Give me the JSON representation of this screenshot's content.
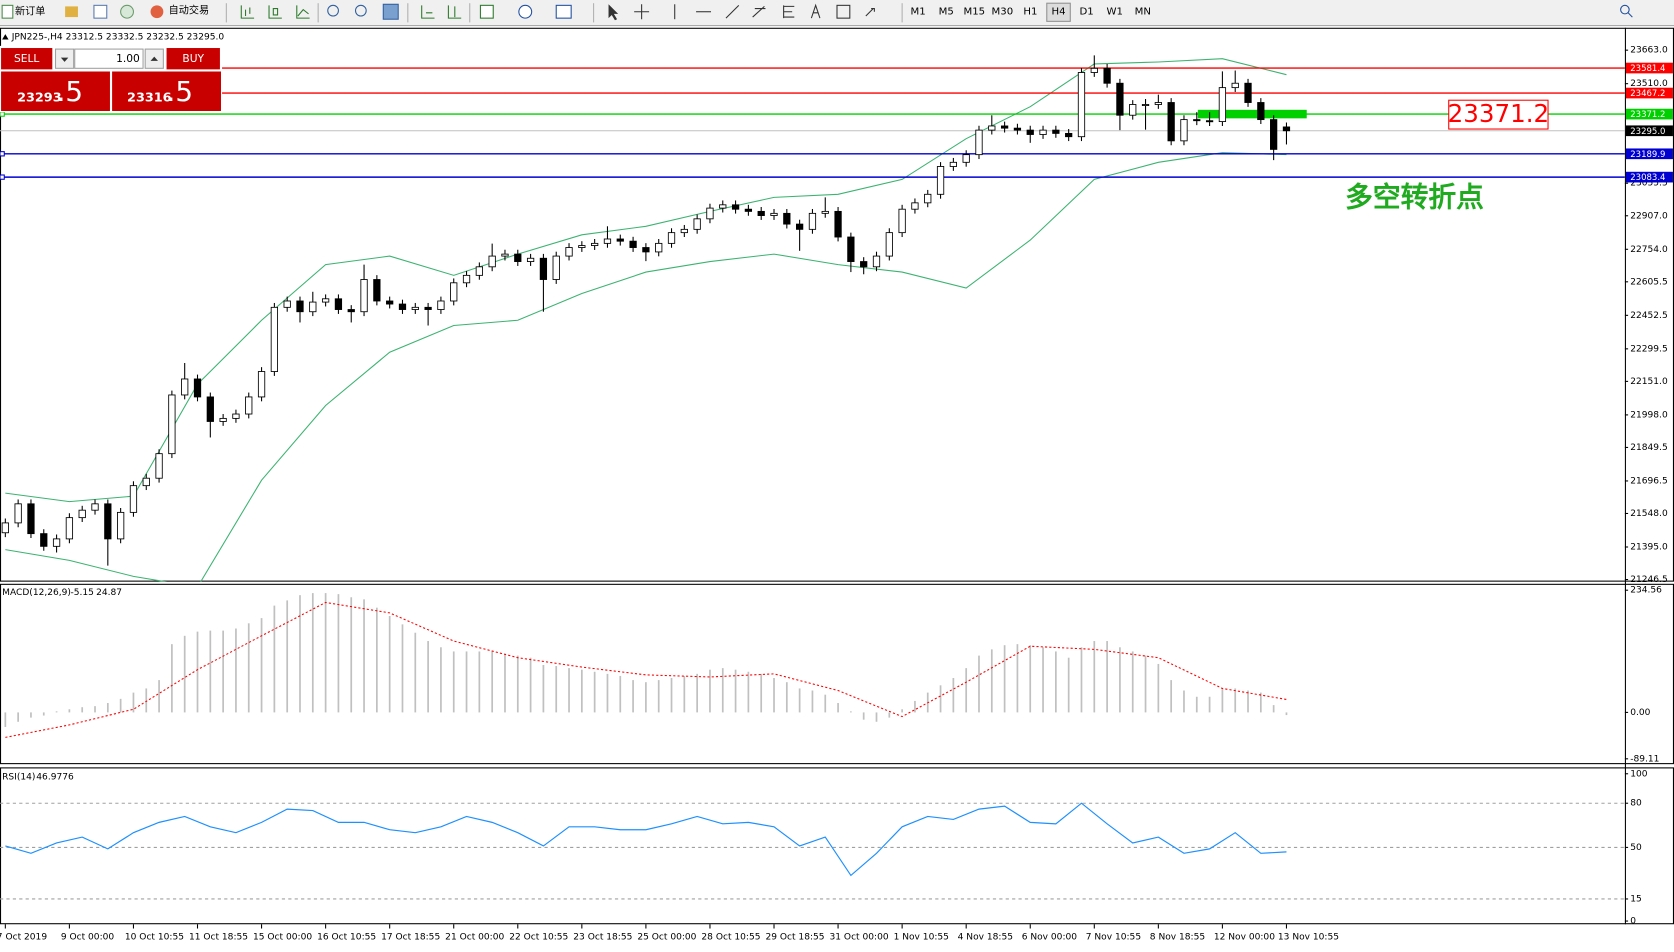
{
  "toolbar": {
    "new_order": "新订单",
    "auto_trading": "自动交易",
    "timeframes": [
      "M1",
      "M5",
      "M15",
      "M30",
      "H1",
      "H4",
      "D1",
      "W1",
      "MN"
    ],
    "active_timeframe": "H4"
  },
  "trade_panel": {
    "sell": "SELL",
    "buy": "BUY",
    "lots": "1.00",
    "sell_price": "23293",
    "sell_fraction": ".5",
    "buy_price": "23316",
    "buy_fraction": ".5",
    "color": "#c80000"
  },
  "chart_data": [
    {
      "type": "candlestick",
      "title": "JPN225-,H4  23312.5 23332.5 23232.5 23295.0",
      "categories": [
        "7 Oct 2019",
        null,
        null,
        null,
        null,
        "9 Oct 00:00",
        null,
        null,
        null,
        null,
        "10 Oct 10:55",
        null,
        null,
        null,
        null,
        "11 Oct 18:55",
        null,
        null,
        null,
        null,
        "15 Oct 00:00",
        null,
        null,
        null,
        null,
        "16 Oct 10:55",
        null,
        null,
        null,
        null,
        "17 Oct 18:55",
        null,
        null,
        null,
        null,
        "21 Oct 00:00",
        null,
        null,
        null,
        null,
        "22 Oct 10:55",
        null,
        null,
        null,
        null,
        "23 Oct 18:55",
        null,
        null,
        null,
        null,
        "25 Oct 00:00",
        null,
        null,
        null,
        null,
        "28 Oct 10:55",
        null,
        null,
        null,
        null,
        "29 Oct 18:55",
        null,
        null,
        null,
        null,
        "31 Oct 00:00",
        null,
        null,
        null,
        null,
        "1 Nov 10:55",
        null,
        null,
        null,
        null,
        "4 Nov 18:55",
        null,
        null,
        null,
        null,
        "6 Nov 00:00",
        null,
        null,
        null,
        null,
        "7 Nov 10:55",
        null,
        null,
        null,
        null,
        "8 Nov 18:55",
        null,
        null,
        null,
        null,
        "12 Nov 00:00",
        null,
        null,
        null,
        null,
        "13 Nov 10:55"
      ],
      "open": [
        21460,
        21505,
        21592,
        21456,
        21398,
        21432,
        21529,
        21563,
        21592,
        21432,
        21553,
        21675,
        21709,
        21821,
        22089,
        22162,
        22080,
        21968,
        21982,
        22002,
        22080,
        22196,
        22489,
        22518,
        22469,
        22513,
        22528,
        22479,
        22469,
        22616,
        22518,
        22504,
        22479,
        22489,
        22479,
        22518,
        22601,
        22635,
        22674,
        22723,
        22732,
        22698,
        22713,
        22616,
        22723,
        22762,
        22771,
        22781,
        22801,
        22791,
        22762,
        22742,
        22781,
        22830,
        22845,
        22893,
        22942,
        22957,
        22937,
        22927,
        22908,
        22918,
        22869,
        22845,
        22918,
        22927,
        22810,
        22698,
        22674,
        22723,
        22830,
        22937,
        22966,
        23005,
        23132,
        23151,
        23186,
        23298,
        23317,
        23307,
        23298,
        23278,
        23298,
        23283,
        23268,
        23561,
        23580,
        23512,
        23366,
        23415,
        23415,
        23424,
        23249,
        23346,
        23341,
        23337,
        23492,
        23512,
        23424,
        23346,
        23312.5
      ],
      "high": [
        21525,
        21612,
        21612,
        21476,
        21452,
        21549,
        21583,
        21612,
        21612,
        21573,
        21695,
        21729,
        21841,
        22109,
        22235,
        22182,
        22100,
        22002,
        22022,
        22100,
        22216,
        22509,
        22538,
        22538,
        22560,
        22548,
        22548,
        22499,
        22684,
        22636,
        22538,
        22524,
        22509,
        22509,
        22538,
        22621,
        22655,
        22694,
        22780,
        22752,
        22752,
        22733,
        22733,
        22743,
        22782,
        22791,
        22801,
        22859,
        22821,
        22811,
        22782,
        22801,
        22850,
        22865,
        22913,
        22962,
        22977,
        22977,
        22957,
        22947,
        22938,
        22938,
        22889,
        22938,
        22991,
        22947,
        22830,
        22718,
        22743,
        22850,
        22957,
        22986,
        23025,
        23152,
        23171,
        23206,
        23318,
        23366,
        23337,
        23327,
        23318,
        23318,
        23318,
        23303,
        23581,
        23639,
        23600,
        23532,
        23435,
        23440,
        23460,
        23444,
        23366,
        23380,
        23380,
        23566,
        23570,
        23532,
        23444,
        23366,
        23332.5
      ],
      "low": [
        21440,
        21485,
        21436,
        21378,
        21370,
        21412,
        21509,
        21543,
        21310,
        21412,
        21533,
        21655,
        21689,
        21801,
        22069,
        22060,
        21895,
        21948,
        21962,
        21982,
        22060,
        22176,
        22469,
        22420,
        22449,
        22493,
        22459,
        22420,
        22449,
        22498,
        22484,
        22459,
        22459,
        22406,
        22459,
        22498,
        22581,
        22615,
        22654,
        22703,
        22678,
        22678,
        22469,
        22596,
        22703,
        22742,
        22751,
        22761,
        22771,
        22742,
        22700,
        22722,
        22761,
        22810,
        22825,
        22873,
        22922,
        22917,
        22907,
        22888,
        22888,
        22849,
        22747,
        22825,
        22898,
        22790,
        22650,
        22640,
        22654,
        22703,
        22810,
        22917,
        22946,
        22985,
        23112,
        23131,
        23166,
        23278,
        23287,
        23278,
        23240,
        23258,
        23263,
        23248,
        23248,
        23541,
        23492,
        23298,
        23346,
        23300,
        23395,
        23229,
        23229,
        23321,
        23317,
        23317,
        23472,
        23404,
        23326,
        23161,
        23232.5
      ],
      "close": [
        21505,
        21592,
        21456,
        21398,
        21432,
        21529,
        21563,
        21592,
        21432,
        21553,
        21675,
        21709,
        21821,
        22089,
        22162,
        22080,
        21968,
        21982,
        22002,
        22080,
        22196,
        22489,
        22518,
        22469,
        22513,
        22528,
        22479,
        22469,
        22616,
        22518,
        22504,
        22479,
        22489,
        22479,
        22518,
        22601,
        22635,
        22674,
        22723,
        22732,
        22698,
        22713,
        22616,
        22723,
        22762,
        22771,
        22781,
        22801,
        22791,
        22762,
        22742,
        22781,
        22830,
        22845,
        22893,
        22942,
        22957,
        22937,
        22927,
        22908,
        22918,
        22869,
        22845,
        22918,
        22927,
        22810,
        22698,
        22674,
        22723,
        22830,
        22937,
        22966,
        23005,
        23132,
        23151,
        23186,
        23298,
        23317,
        23307,
        23298,
        23278,
        23298,
        23283,
        23268,
        23561,
        23580,
        23512,
        23366,
        23415,
        23415,
        23424,
        23249,
        23346,
        23341,
        23337,
        23492,
        23512,
        23424,
        23346,
        23210,
        23295.0
      ],
      "up_color": "#ffffff",
      "down_color": "#000000",
      "last_label": "23295.0",
      "last_color": "#c0c0c0",
      "bands": [
        {
          "color": "#3cb371",
          "x": [
            0,
            5,
            10,
            15,
            20,
            25,
            30,
            35,
            40,
            45,
            50,
            55,
            60,
            65,
            70,
            75,
            80,
            85,
            90,
            95,
            100
          ],
          "values": [
            21641,
            21602,
            21627,
            22138,
            22430,
            22684,
            22723,
            22635,
            22732,
            22820,
            22859,
            22927,
            22991,
            23005,
            23073,
            23259,
            23405,
            23600,
            23609,
            23624,
            23551
          ]
        },
        {
          "color": "#3cb371",
          "x": [
            0,
            5,
            10,
            15,
            20,
            25,
            30,
            35,
            40,
            45,
            50,
            55,
            60,
            65,
            70,
            75,
            80,
            85,
            90,
            95,
            100
          ],
          "values": [
            21383,
            21334,
            21261,
            21212,
            21700,
            22041,
            22284,
            22406,
            22430,
            22552,
            22650,
            22698,
            22732,
            22684,
            22650,
            22577,
            22796,
            23073,
            23151,
            23195,
            23186
          ]
        }
      ],
      "levels": [
        {
          "value": 23581.4,
          "color": "#ff0000"
        },
        {
          "value": 23467.2,
          "color": "#ff0000"
        },
        {
          "value": 23371.2,
          "color": "#00d000",
          "callout_color": "#ff0000"
        },
        {
          "value": 23189.9,
          "color": "#0000d0"
        },
        {
          "value": 23083.4,
          "color": "#0000d0"
        }
      ],
      "annotation": {
        "text": "多空转折点",
        "color": "#1faa1f"
      },
      "ylim": [
        21246.5,
        23663
      ],
      "yticks": [
        {
          "value": 23663,
          "label": "23663.0"
        },
        {
          "value": 23510,
          "label": "23510.0"
        },
        {
          "value": 23055.5,
          "label": "23055.5"
        },
        {
          "value": 22907,
          "label": "22907.0"
        },
        {
          "value": 22754,
          "label": "22754.0"
        },
        {
          "value": 22605.5,
          "label": "22605.5"
        },
        {
          "value": 22452.5,
          "label": "22452.5"
        },
        {
          "value": 22299.5,
          "label": "22299.5"
        },
        {
          "value": 22151,
          "label": "22151.0"
        },
        {
          "value": 21998,
          "label": "21998.0"
        },
        {
          "value": 21849.5,
          "label": "21849.5"
        },
        {
          "value": 21696.5,
          "label": "21696.5"
        },
        {
          "value": 21548,
          "label": "21548.0"
        },
        {
          "value": 21395,
          "label": "21395.0"
        },
        {
          "value": 21246.5,
          "label": "21246.5"
        }
      ]
    },
    {
      "type": "macd",
      "title": "MACD(12,26,9)",
      "values": [
        -28,
        -18,
        -10,
        -6,
        2,
        6,
        10,
        12,
        18,
        26,
        38,
        46,
        62,
        131,
        147,
        155,
        157,
        157,
        161,
        171,
        181,
        205,
        215,
        225,
        229,
        229,
        227,
        221,
        217,
        201,
        185,
        169,
        153,
        137,
        125,
        117,
        117,
        117,
        117,
        113,
        109,
        105,
        91,
        89,
        85,
        82,
        78,
        74,
        70,
        62,
        58,
        62,
        66,
        70,
        74,
        82,
        85,
        82,
        78,
        74,
        66,
        58,
        46,
        42,
        34,
        18,
        2,
        -14,
        -18,
        -10,
        6,
        22,
        38,
        52,
        66,
        85,
        109,
        121,
        129,
        131,
        129,
        125,
        117,
        105,
        125,
        137,
        137,
        125,
        117,
        109,
        93,
        62,
        42,
        30,
        30,
        46,
        46,
        42,
        38,
        14,
        -5.15
      ],
      "color": "#c0c0c0",
      "signal": {
        "color": "#ff0000",
        "x": [
          0,
          5,
          10,
          15,
          20,
          25,
          30,
          35,
          40,
          45,
          50,
          55,
          60,
          65,
          70,
          75,
          80,
          85,
          90,
          95,
          100
        ],
        "values": [
          -48,
          -24,
          6,
          82,
          147,
          211,
          191,
          137,
          105,
          87,
          72,
          68,
          74,
          42,
          -8,
          58,
          127,
          121,
          105,
          46,
          24.87
        ]
      },
      "ylim": [
        -89.11,
        234.56
      ],
      "yticks": [
        234.56,
        {
          "value": 0,
          "label": "0.00"
        },
        -89.11
      ]
    },
    {
      "type": "line",
      "title": "RSI(14)",
      "x": [
        0,
        2,
        4,
        6,
        8,
        10,
        12,
        14,
        16,
        18,
        20,
        22,
        24,
        26,
        28,
        30,
        32,
        34,
        36,
        38,
        40,
        42,
        44,
        46,
        48,
        50,
        52,
        54,
        56,
        58,
        60,
        62,
        64,
        66,
        68,
        70,
        72,
        74,
        76,
        78,
        80,
        82,
        84,
        86,
        88,
        90,
        92,
        94,
        96,
        98,
        100
      ],
      "values": [
        51,
        46,
        53,
        57,
        49,
        60,
        67,
        71,
        64,
        60,
        67,
        76,
        75,
        67,
        67,
        62,
        60,
        64,
        71,
        67,
        60,
        51,
        64,
        64,
        62,
        62,
        66,
        71,
        66,
        67,
        64,
        51,
        57,
        31,
        46,
        64,
        71,
        69,
        76,
        78,
        67,
        66,
        80,
        66,
        53,
        57,
        46,
        49,
        60,
        46,
        46.9776
      ],
      "color": "#1e90ff",
      "ylim": [
        0,
        100
      ],
      "yticks": [
        100,
        80,
        50,
        15,
        0
      ]
    }
  ]
}
